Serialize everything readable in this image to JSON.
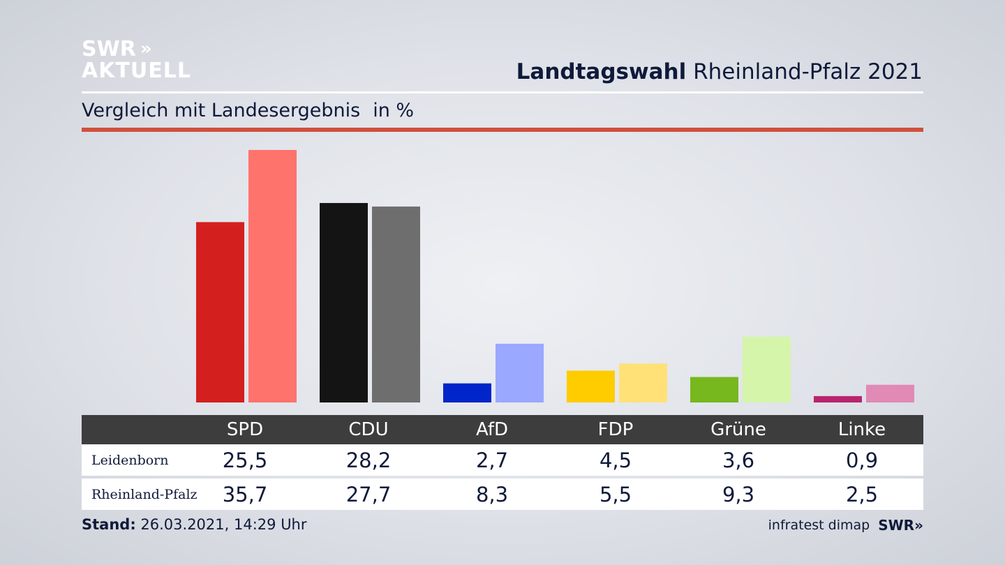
{
  "logo": {
    "line1": "SWR",
    "chevrons": "»",
    "line2": "AKTUELL"
  },
  "title": {
    "bold": "Landtagswahl",
    "rest": "Rheinland-Pfalz 2021"
  },
  "subtitle": {
    "text": "Vergleich mit Landesergebnis",
    "unit": "in %"
  },
  "table": {
    "parties": [
      "SPD",
      "CDU",
      "AfD",
      "FDP",
      "Grüne",
      "Linke"
    ],
    "rows": [
      {
        "label": "Leidenborn",
        "values": [
          "25,5",
          "28,2",
          "2,7",
          "4,5",
          "3,6",
          "0,9"
        ]
      },
      {
        "label": "Rheinland-Pfalz",
        "values": [
          "35,7",
          "27,7",
          "8,3",
          "5,5",
          "9,3",
          "2,5"
        ]
      }
    ]
  },
  "footer": {
    "stand_label": "Stand:",
    "stand_value": "26.03.2021, 14:29 Uhr",
    "source": "infratest dimap",
    "brand": "SWR",
    "brand_chevrons": "»"
  },
  "chart_data": {
    "type": "bar",
    "categories": [
      "SPD",
      "CDU",
      "AfD",
      "FDP",
      "Grüne",
      "Linke"
    ],
    "series": [
      {
        "name": "Leidenborn",
        "values": [
          25.5,
          28.2,
          2.7,
          4.5,
          3.6,
          0.9
        ],
        "colors": [
          "#d41f1f",
          "#141414",
          "#0025c9",
          "#ffcc00",
          "#76b81e",
          "#b8246e"
        ]
      },
      {
        "name": "Rheinland-Pfalz",
        "values": [
          35.7,
          27.7,
          8.3,
          5.5,
          9.3,
          2.5
        ],
        "colors": [
          "#ff736d",
          "#6e6e6e",
          "#9aa8ff",
          "#ffe177",
          "#d5f5aa",
          "#e08ab5"
        ]
      }
    ],
    "ylim": [
      0,
      35.7
    ],
    "grid": false,
    "title": "Vergleich mit Landesergebnis",
    "ylabel": "in %"
  }
}
